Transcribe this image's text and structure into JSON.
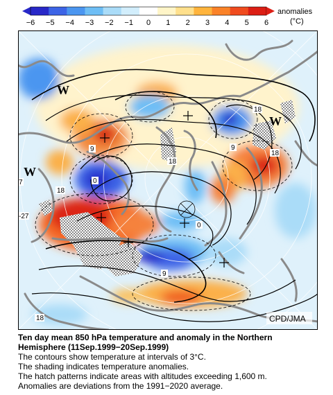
{
  "legend": {
    "title": "anomalies",
    "unit": "(°C)",
    "ticks": [
      "−6",
      "−5",
      "−4",
      "−3",
      "−2",
      "−1",
      "0",
      "1",
      "2",
      "3",
      "4",
      "5",
      "6"
    ],
    "colors": [
      "#2828c8",
      "#3c64e6",
      "#4b96f0",
      "#6ebef5",
      "#aadcf8",
      "#d2eefc",
      "#ffffff",
      "#fff5c8",
      "#ffe08c",
      "#ffb43c",
      "#fa8228",
      "#f04b1e",
      "#dc1e14"
    ]
  },
  "map": {
    "credit": "CPD/JMA",
    "contour_labels": [
      "18",
      "18",
      "9",
      "9",
      "0",
      "18",
      "7",
      "-27",
      "0",
      "18",
      "9",
      "18",
      "0",
      "9",
      "18",
      "18"
    ],
    "highs": [
      "W",
      "W",
      "W"
    ],
    "colors": {
      "coast": "#8a8a8a",
      "contour": "#000000",
      "hatch": "#9a9a9a",
      "warm": "#f05a1e",
      "cold": "#3c50dc"
    }
  },
  "caption": {
    "title_line1": "Ten day mean 850 hPa temperature and anomaly in the Northern",
    "title_line2": "Hemisphere (11Sep.1999−20Sep.1999)",
    "lines": [
      "The contours show temperature at intervals of 3°C.",
      "The shading indicates temperature anomalies.",
      "The hatch patterns indicate areas with altitudes exceeding 1,600 m.",
      "Anomalies are deviations from the 1991−2020 average."
    ]
  }
}
